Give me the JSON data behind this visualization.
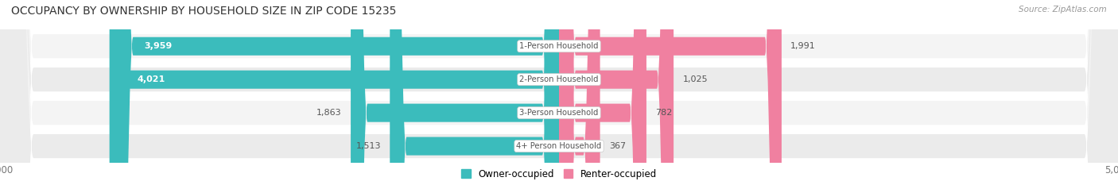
{
  "title": "OCCUPANCY BY OWNERSHIP BY HOUSEHOLD SIZE IN ZIP CODE 15235",
  "source": "Source: ZipAtlas.com",
  "categories": [
    "1-Person Household",
    "2-Person Household",
    "3-Person Household",
    "4+ Person Household"
  ],
  "owner_values": [
    3959,
    4021,
    1863,
    1513
  ],
  "renter_values": [
    1991,
    1025,
    782,
    367
  ],
  "owner_color": "#3bbcbc",
  "renter_color": "#f080a0",
  "axis_max": 5000,
  "row_bg_light": "#f4f4f4",
  "row_bg_dark": "#ebebeb",
  "track_color": "#e8e8e8",
  "title_color": "#333333",
  "fig_bg_color": "#ffffff",
  "label_inside_color": "#ffffff",
  "label_outside_color": "#555555",
  "center_label_color": "#555555",
  "source_color": "#999999",
  "tick_color": "#777777",
  "legend_owner_color": "#3bbcbc",
  "legend_renter_color": "#f080a0",
  "large_threshold": 2000
}
